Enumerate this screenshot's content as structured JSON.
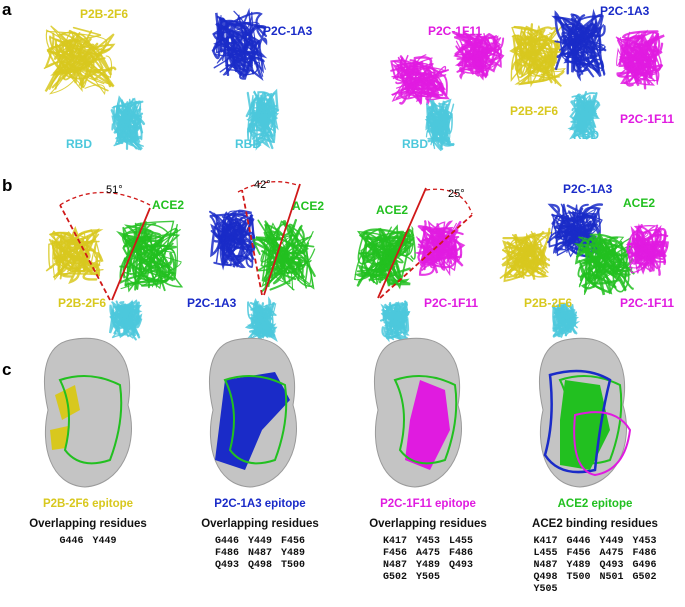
{
  "panels": {
    "a": "a",
    "b": "b",
    "c": "c"
  },
  "colors": {
    "p2b_2f6": "#d8c81e",
    "p2c_1a3": "#1a2bc8",
    "p2c_1f11": "#e01be0",
    "rbd": "#4cc8dc",
    "ace2": "#22c020",
    "angle_line": "#d01818"
  },
  "row_a": {
    "structures": [
      {
        "antibody": "P2B-2F6",
        "rbd": "RBD"
      },
      {
        "antibody": "P2C-1A3",
        "rbd": "RBD"
      },
      {
        "antibody": "P2C-1F11",
        "rbd": "RBD"
      },
      {
        "antibodies": [
          "P2B-2F6",
          "P2C-1A3",
          "P2C-1F11"
        ],
        "rbd": "RBD"
      }
    ]
  },
  "row_b": {
    "structures": [
      {
        "antibody": "P2B-2F6",
        "receptor": "ACE2",
        "angle": "51°"
      },
      {
        "antibody": "P2C-1A3",
        "receptor": "ACE2",
        "angle": "42°"
      },
      {
        "antibody": "P2C-1F11",
        "receptor": "ACE2",
        "angle": "25°"
      },
      {
        "antibodies": [
          "P2C-1A3",
          "P2B-2F6",
          "P2C-1F11"
        ],
        "receptor": "ACE2"
      }
    ]
  },
  "row_c": {
    "columns": [
      {
        "epitope": "P2B-2F6 epitope",
        "heading": "Overlapping residues",
        "ncols": 2,
        "residues": [
          "G446",
          "Y449"
        ]
      },
      {
        "epitope": "P2C-1A3 epitope",
        "heading": "Overlapping residues",
        "ncols": 3,
        "residues": [
          "G446",
          "Y449",
          "F456",
          "F486",
          "N487",
          "Y489",
          "Q493",
          "Q498",
          "T500"
        ]
      },
      {
        "epitope": "P2C-1F11 epitope",
        "heading": "Overlapping residues",
        "ncols": 3,
        "residues": [
          "K417",
          "Y453",
          "L455",
          "F456",
          "A475",
          "F486",
          "N487",
          "Y489",
          "Q493",
          "G502",
          "Y505"
        ]
      },
      {
        "epitope": "ACE2 epitope",
        "heading": "ACE2 binding residues",
        "ncols": 4,
        "residues": [
          "K417",
          "G446",
          "Y449",
          "Y453",
          "L455",
          "F456",
          "A475",
          "F486",
          "N487",
          "Y489",
          "Q493",
          "G496",
          "Q498",
          "T500",
          "N501",
          "G502",
          "Y505"
        ]
      }
    ]
  }
}
